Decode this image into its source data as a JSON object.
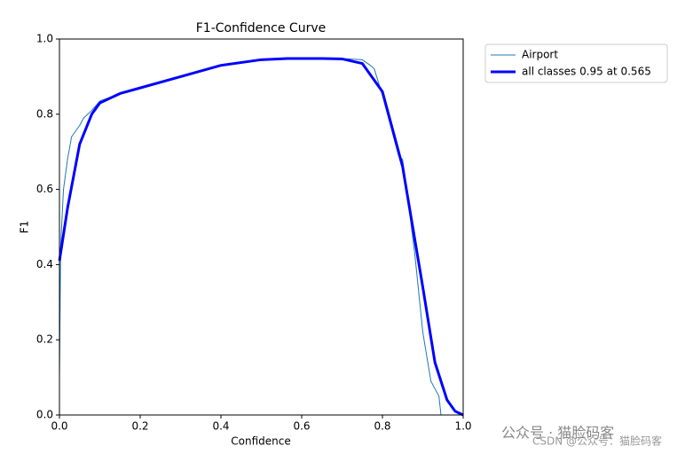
{
  "chart_data": {
    "type": "line",
    "title": "F1-Confidence Curve",
    "x_label": "Confidence",
    "y_label": "F1",
    "xlim": [
      0,
      1
    ],
    "ylim": [
      0,
      1
    ],
    "xticks": [
      {
        "value": 0,
        "label": "0.0"
      },
      0.2,
      0.4,
      0.6,
      0.8,
      {
        "value": 1,
        "label": "1.0"
      }
    ],
    "yticks": [
      {
        "value": 0,
        "label": "0.0"
      },
      0.2,
      0.4,
      0.6,
      0.8,
      {
        "value": 1,
        "label": "1.0"
      }
    ],
    "legend": "outside-upper-right",
    "series": [
      {
        "name": "Airport",
        "color": "#1f77b4",
        "width": 1,
        "x": [
          0,
          0.003,
          0.01,
          0.02,
          0.03,
          0.05,
          0.06,
          0.08,
          0.1,
          0.15,
          0.2,
          0.3,
          0.4,
          0.5,
          0.6,
          0.7,
          0.75,
          0.77,
          0.78,
          0.8,
          0.82,
          0.84,
          0.85,
          0.86,
          0.88,
          0.9,
          0.92,
          0.94,
          0.945
        ],
        "values": [
          0.1,
          0.45,
          0.6,
          0.68,
          0.74,
          0.77,
          0.79,
          0.81,
          0.835,
          0.855,
          0.87,
          0.9,
          0.93,
          0.945,
          0.948,
          0.948,
          0.945,
          0.93,
          0.92,
          0.85,
          0.77,
          0.69,
          0.68,
          0.6,
          0.43,
          0.22,
          0.09,
          0.05,
          0
        ]
      },
      {
        "name": "all classes 0.95 at 0.565",
        "color": "#0000ff",
        "width": 3,
        "x": [
          0,
          0.02,
          0.05,
          0.08,
          0.1,
          0.15,
          0.2,
          0.3,
          0.4,
          0.5,
          0.565,
          0.65,
          0.7,
          0.75,
          0.8,
          0.85,
          0.9,
          0.93,
          0.96,
          0.98,
          1
        ],
        "values": [
          0.41,
          0.55,
          0.72,
          0.8,
          0.83,
          0.855,
          0.87,
          0.9,
          0.93,
          0.945,
          0.948,
          0.948,
          0.947,
          0.935,
          0.86,
          0.66,
          0.34,
          0.14,
          0.04,
          0.01,
          0
        ]
      }
    ],
    "watermarks": [
      "公众号 · 猫脸码客",
      "CSDN @公众号：猫脸码客"
    ]
  }
}
